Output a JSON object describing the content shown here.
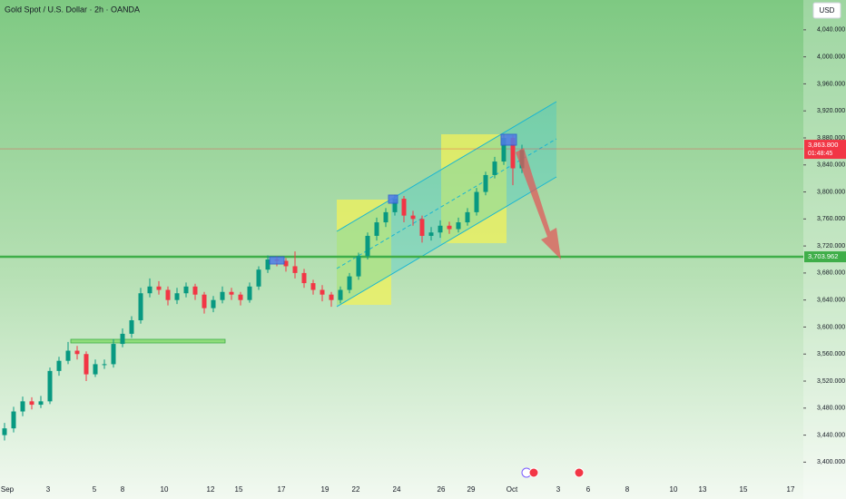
{
  "chart_data": {
    "type": "candlestick",
    "title": "Gold Spot / U.S. Dollar · 2h · OANDA",
    "currency": "USD",
    "up_color": "#089981",
    "down_color": "#f23645",
    "candles": [
      [
        3440,
        3458,
        3432,
        3450
      ],
      [
        3450,
        3482,
        3444,
        3475
      ],
      [
        3475,
        3497,
        3468,
        3490
      ],
      [
        3490,
        3496,
        3478,
        3485
      ],
      [
        3485,
        3498,
        3480,
        3490
      ],
      [
        3490,
        3540,
        3486,
        3535
      ],
      [
        3535,
        3556,
        3528,
        3550
      ],
      [
        3550,
        3578,
        3545,
        3565
      ],
      [
        3565,
        3572,
        3552,
        3560
      ],
      [
        3560,
        3564,
        3520,
        3530
      ],
      [
        3530,
        3552,
        3526,
        3545
      ],
      [
        3545,
        3552,
        3538,
        3545
      ],
      [
        3545,
        3582,
        3540,
        3575
      ],
      [
        3575,
        3598,
        3570,
        3590
      ],
      [
        3590,
        3616,
        3584,
        3610
      ],
      [
        3610,
        3658,
        3605,
        3650
      ],
      [
        3650,
        3672,
        3644,
        3660
      ],
      [
        3660,
        3668,
        3648,
        3655
      ],
      [
        3655,
        3660,
        3632,
        3640
      ],
      [
        3640,
        3658,
        3634,
        3650
      ],
      [
        3650,
        3666,
        3644,
        3660
      ],
      [
        3660,
        3664,
        3640,
        3648
      ],
      [
        3648,
        3652,
        3620,
        3628
      ],
      [
        3628,
        3646,
        3622,
        3640
      ],
      [
        3640,
        3660,
        3635,
        3652
      ],
      [
        3652,
        3658,
        3640,
        3648
      ],
      [
        3648,
        3652,
        3632,
        3640
      ],
      [
        3640,
        3666,
        3636,
        3660
      ],
      [
        3660,
        3690,
        3655,
        3685
      ],
      [
        3685,
        3706,
        3680,
        3700
      ],
      [
        3700,
        3705,
        3690,
        3698
      ],
      [
        3698,
        3702,
        3682,
        3690
      ],
      [
        3690,
        3712,
        3672,
        3680
      ],
      [
        3680,
        3686,
        3658,
        3665
      ],
      [
        3665,
        3670,
        3648,
        3655
      ],
      [
        3655,
        3662,
        3638,
        3648
      ],
      [
        3648,
        3652,
        3630,
        3640
      ],
      [
        3640,
        3660,
        3635,
        3655
      ],
      [
        3655,
        3680,
        3650,
        3675
      ],
      [
        3675,
        3710,
        3670,
        3705
      ],
      [
        3705,
        3740,
        3700,
        3735
      ],
      [
        3735,
        3762,
        3728,
        3755
      ],
      [
        3755,
        3776,
        3748,
        3770
      ],
      [
        3770,
        3796,
        3765,
        3790
      ],
      [
        3790,
        3794,
        3755,
        3765
      ],
      [
        3765,
        3772,
        3750,
        3760
      ],
      [
        3760,
        3765,
        3725,
        3735
      ],
      [
        3735,
        3748,
        3728,
        3740
      ],
      [
        3740,
        3758,
        3732,
        3750
      ],
      [
        3750,
        3756,
        3738,
        3745
      ],
      [
        3745,
        3762,
        3740,
        3755
      ],
      [
        3755,
        3776,
        3750,
        3770
      ],
      [
        3770,
        3806,
        3765,
        3800
      ],
      [
        3800,
        3830,
        3795,
        3825
      ],
      [
        3825,
        3852,
        3820,
        3845
      ],
      [
        3845,
        3886,
        3840,
        3880
      ],
      [
        3880,
        3884,
        3810,
        3835
      ],
      [
        3835,
        3870,
        3828,
        3862
      ]
    ],
    "x_labels": [
      "Sep",
      "3",
      "5",
      "8",
      "10",
      "12",
      "15",
      "17",
      "19",
      "22",
      "24",
      "26",
      "29",
      "Oct",
      "3",
      "6",
      "8",
      "10",
      "13",
      "15",
      "17"
    ],
    "ylim": [
      3379,
      4064
    ],
    "yticks": [
      {
        "value": 3400,
        "label": "3,400.000"
      },
      {
        "value": 3440,
        "label": "3,440.000"
      },
      {
        "value": 3480,
        "label": "3,480.000"
      },
      {
        "value": 3520,
        "label": "3,520.000"
      },
      {
        "value": 3560,
        "label": "3,560.000"
      },
      {
        "value": 3600,
        "label": "3,600.000"
      },
      {
        "value": 3640,
        "label": "3,640.000"
      },
      {
        "value": 3680,
        "label": "3,680.000"
      },
      {
        "value": 3720,
        "label": "3,720.000"
      },
      {
        "value": 3760,
        "label": "3,760.000"
      },
      {
        "value": 3800,
        "label": "3,800.000"
      },
      {
        "value": 3840,
        "label": "3,840.000"
      },
      {
        "value": 3880,
        "label": "3,880.000"
      },
      {
        "value": 3920,
        "label": "3,920.000"
      },
      {
        "value": 3960,
        "label": "3,960.000"
      },
      {
        "value": 4000,
        "label": "4,000.000"
      },
      {
        "value": 4040,
        "label": "4,040.000"
      }
    ],
    "level": {
      "value": 3703.962,
      "label": "3,703.962",
      "color": "#3fae49"
    },
    "last_price": {
      "value": 3863.8,
      "label": "3,863.800",
      "color": "#f23645"
    },
    "countdown": "01:48:45"
  }
}
